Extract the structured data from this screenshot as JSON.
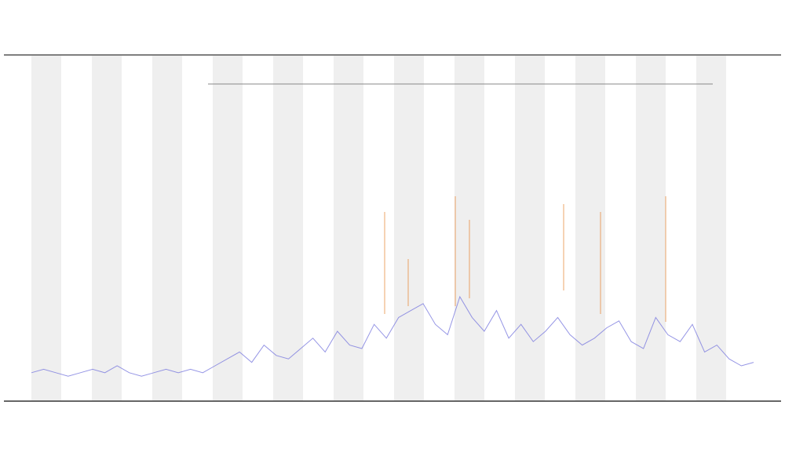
{
  "chart_data": {
    "type": "line",
    "series": [
      {
        "color": "#7b7bdf",
        "values": [
          8,
          9,
          8,
          7,
          8,
          9,
          8,
          10,
          8,
          7,
          8,
          9,
          8,
          9,
          8,
          10,
          12,
          14,
          11,
          16,
          13,
          12,
          15,
          18,
          14,
          20,
          16,
          15,
          22,
          18,
          24,
          26,
          28,
          22,
          19,
          30,
          24,
          20,
          26,
          18,
          22,
          17,
          20,
          24,
          19,
          16,
          18,
          21,
          23,
          17,
          15,
          24,
          19,
          17,
          22,
          14,
          16,
          12,
          10,
          11
        ]
      }
    ],
    "ylim": [
      0,
      100
    ]
  }
}
